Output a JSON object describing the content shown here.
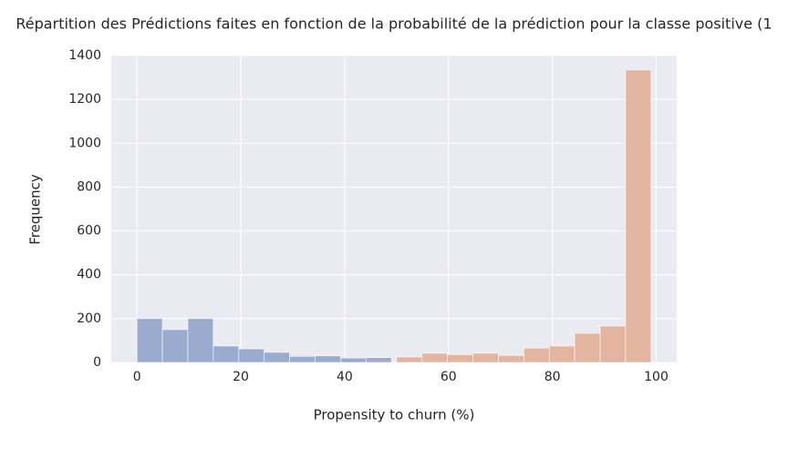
{
  "chart_data": {
    "type": "histogram",
    "title": "Répartition des Prédictions faites en fonction de la probabilité de la prédiction pour la classe positive (1",
    "xlabel": "Propensity to churn (%)",
    "ylabel": "Frequency",
    "series": [
      {
        "color": "#9aabcf",
        "bins": [
          0,
          4.9,
          9.8,
          14.7,
          19.6,
          24.5,
          29.4,
          34.3,
          39.2,
          44.1,
          49
        ],
        "values": [
          200,
          150,
          200,
          75,
          62,
          46,
          28,
          30,
          20,
          22
        ]
      },
      {
        "color": "#e3b5a0",
        "bins": [
          50,
          54.9,
          59.8,
          64.7,
          69.6,
          74.5,
          79.4,
          84.3,
          89.2,
          94.1,
          99
        ],
        "values": [
          25,
          42,
          36,
          42,
          32,
          66,
          75,
          133,
          166,
          1334
        ]
      }
    ],
    "xlim": [
      -4.95,
      103.95
    ],
    "ylim": [
      0,
      1400
    ],
    "xticks": [
      0,
      20,
      40,
      60,
      80,
      100
    ],
    "yticks": [
      0,
      200,
      400,
      600,
      800,
      1000,
      1200,
      1400
    ],
    "grid": true
  }
}
